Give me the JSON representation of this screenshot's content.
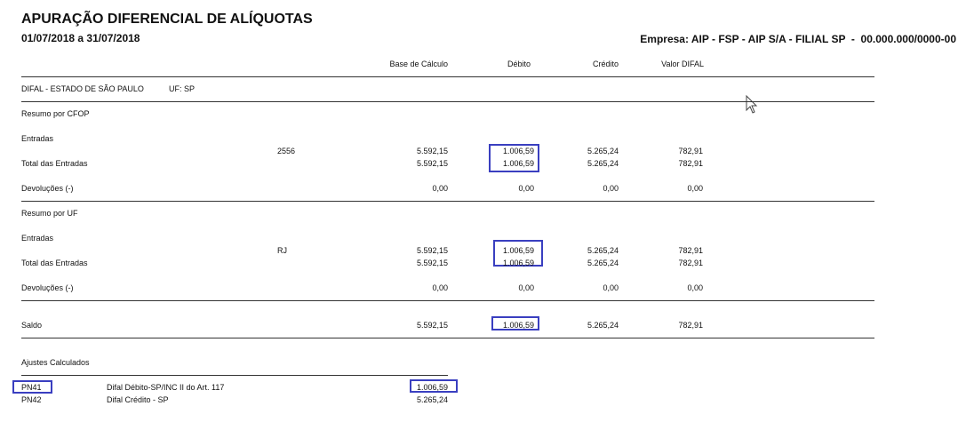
{
  "header": {
    "title": "APURAÇÃO DIFERENCIAL DE ALÍQUOTAS",
    "period": "01/07/2018 a 31/07/2018",
    "company": "Empresa: AIP - FSP - AIP S/A - FILIAL SP  -  00.000.000/0000-00"
  },
  "columns": [
    "Base de Cálculo",
    "Débito",
    "Crédito",
    "Valor DIFAL"
  ],
  "section": {
    "title": "DIFAL - ESTADO DE SÃO PAULO",
    "uf": "UF: SP"
  },
  "groups": [
    {
      "title": "Resumo por CFOP",
      "subtitle": "Entradas",
      "rows": [
        {
          "label": "2556",
          "values": [
            "5.592,15",
            "1.006,59",
            "5.265,24",
            "782,91"
          ]
        },
        {
          "label": "Total das Entradas",
          "values": [
            "5.592,15",
            "1.006,59",
            "5.265,24",
            "782,91"
          ]
        },
        {
          "label": "Devoluções (-)",
          "values": [
            "0,00",
            "0,00",
            "0,00",
            "0,00"
          ]
        }
      ]
    },
    {
      "title": "Resumo por UF",
      "subtitle": "Entradas",
      "rows": [
        {
          "label": "RJ",
          "values": [
            "5.592,15",
            "1.006,59",
            "5.265,24",
            "782,91"
          ]
        },
        {
          "label": "Total das Entradas",
          "values": [
            "5.592,15",
            "1.006,59",
            "5.265,24",
            "782,91"
          ]
        },
        {
          "label": "Devoluções (-)",
          "values": [
            "0,00",
            "0,00",
            "0,00",
            "0,00"
          ]
        }
      ]
    }
  ],
  "saldo": {
    "label": "Saldo",
    "values": [
      "5.592,15",
      "1.006,59",
      "5.265,24",
      "782,91"
    ]
  },
  "adjustments": {
    "title": "Ajustes Calculados",
    "rows": [
      {
        "code": "PN41",
        "description": "Difal Débito-SP/INC II do Art. 117",
        "value": "1.006,59"
      },
      {
        "code": "PN42",
        "description": "Difal Crédito - SP",
        "value": "5.265,24"
      }
    ]
  }
}
